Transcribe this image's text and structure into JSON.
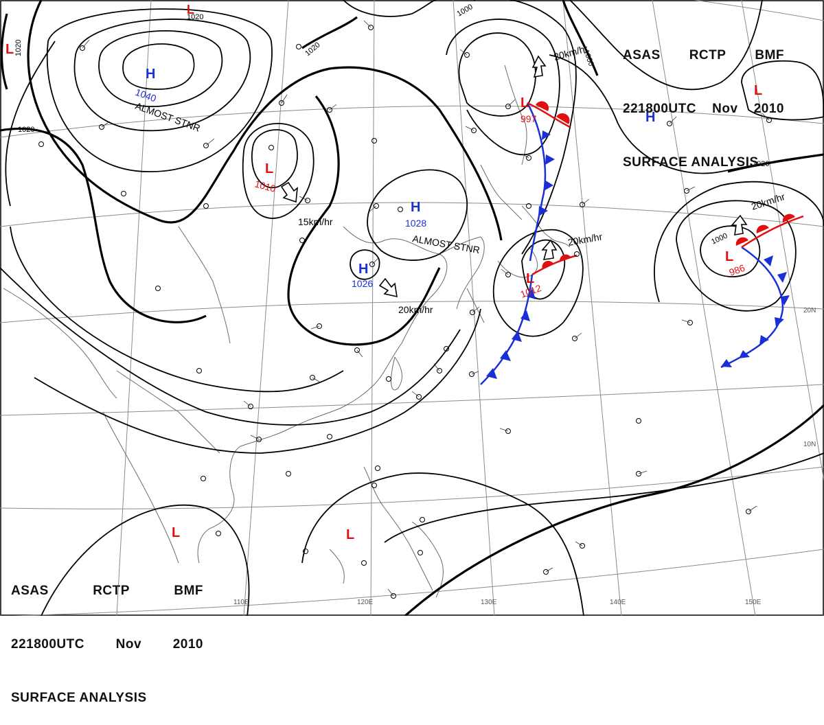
{
  "header": {
    "line1": [
      "ASAS",
      "RCTP",
      "BMF"
    ],
    "line2": [
      "221800UTC",
      "Nov",
      "2010"
    ],
    "line3": "SURFACE ANALYSIS"
  },
  "isobar_labels": [
    "1020",
    "1020",
    "1020",
    "1020",
    "1000",
    "1000",
    "1020",
    "1000"
  ],
  "pressure_systems": [
    {
      "letter": "H",
      "value": "1040",
      "note": "ALMOST STNR",
      "color": "#1a2fd6"
    },
    {
      "letter": "L",
      "value": "1010",
      "color": "#e01010"
    },
    {
      "letter": "H",
      "value": "1028",
      "note": "ALMOST STNR",
      "color": "#1a2fd6"
    },
    {
      "letter": "H",
      "value": "1026",
      "color": "#1a2fd6"
    },
    {
      "letter": "L",
      "value": "997",
      "color": "#e01010"
    },
    {
      "letter": "L",
      "value": "1012",
      "color": "#e01010"
    },
    {
      "letter": "L",
      "value": "986",
      "color": "#e01010"
    },
    {
      "letter": "H",
      "value": "",
      "color": "#1a2fd6"
    },
    {
      "letter": "L",
      "value": "",
      "color": "#e01010"
    },
    {
      "letter": "L",
      "value": "",
      "color": "#e01010"
    },
    {
      "letter": "L",
      "value": "",
      "color": "#e01010"
    },
    {
      "letter": "L",
      "value": "",
      "color": "#e01010"
    }
  ],
  "motion_labels": [
    "15km/hr",
    "20km/hr",
    "20km/hr",
    "20km/hr",
    "20km/hr"
  ],
  "longitude_labels": [
    "110E",
    "120E",
    "130E",
    "140E",
    "150E"
  ],
  "latitude_labels": [
    "20N",
    "10N"
  ],
  "colors": {
    "warm_front": "#e01010",
    "cold_front": "#1a2fd6",
    "isobar": "#000000",
    "coastline": "#666666",
    "grid": "#888888"
  }
}
